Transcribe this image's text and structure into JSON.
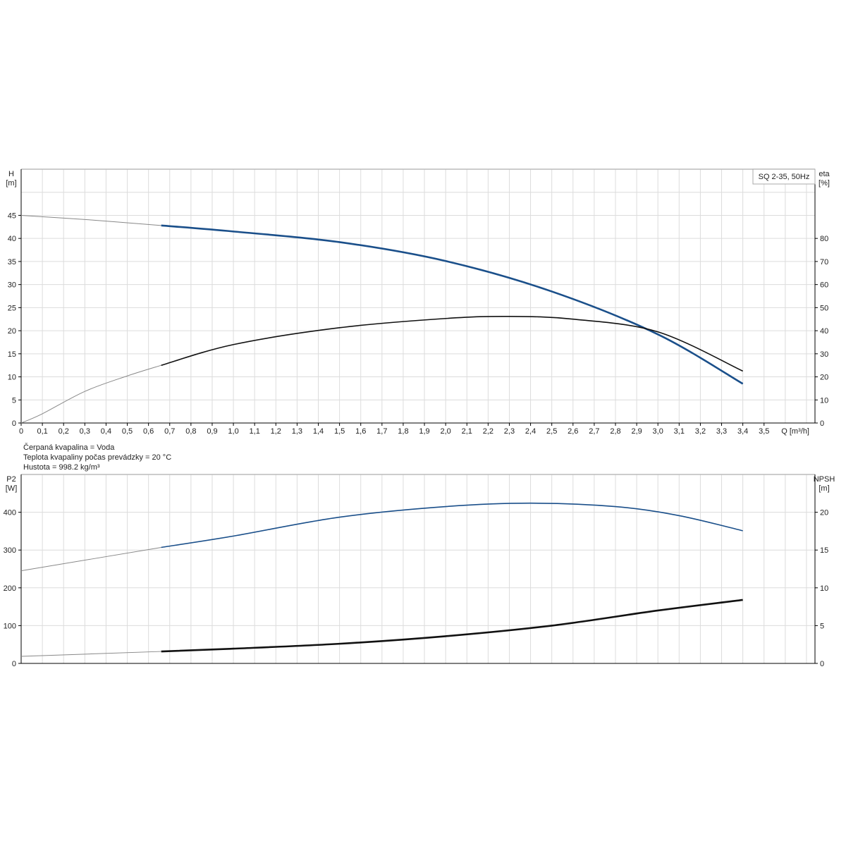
{
  "chart_data": [
    {
      "type": "line",
      "legend": "SQ 2-35, 50Hz",
      "legend_placement": "top-right",
      "grid": true,
      "xlabel": "Q [m³/h]",
      "xlim": [
        0,
        3.74
      ],
      "xticks": [
        "0",
        "0,1",
        "0,2",
        "0,3",
        "0,4",
        "0,5",
        "0,6",
        "0,7",
        "0,8",
        "0,9",
        "1,0",
        "1,1",
        "1,2",
        "1,3",
        "1,4",
        "1,5",
        "1,6",
        "1,7",
        "1,8",
        "1,9",
        "2,0",
        "2,1",
        "2,2",
        "2,3",
        "2,4",
        "2,5",
        "2,6",
        "2,7",
        "2,8",
        "2,9",
        "3,0",
        "3,1",
        "3,2",
        "3,3",
        "3,4",
        "3,5"
      ],
      "ylabel_left": [
        "H",
        "[m]"
      ],
      "ylim_left": [
        0,
        55
      ],
      "yticks_left": [
        "0",
        "5",
        "10",
        "15",
        "20",
        "25",
        "30",
        "35",
        "40",
        "45"
      ],
      "ylabel_right": [
        "eta",
        "[%]"
      ],
      "ylim_right": [
        0,
        110
      ],
      "yticks_right": [
        "0",
        "10",
        "20",
        "30",
        "40",
        "50",
        "60",
        "70",
        "80"
      ],
      "series": [
        {
          "key": "H",
          "axis": "left",
          "color": "#1a4f8a",
          "operating_range_start": 0.66,
          "x": [
            0,
            0.33,
            0.66,
            1.0,
            1.5,
            2.0,
            2.5,
            3.0,
            3.4
          ],
          "y": [
            45,
            44,
            42.8,
            41.5,
            39.2,
            35.1,
            28.5,
            19.2,
            8.5
          ]
        },
        {
          "key": "eta",
          "axis": "right",
          "color": "#111111",
          "operating_range_start": 0.66,
          "x": [
            0,
            0.1,
            0.3,
            0.5,
            0.66,
            1.0,
            1.5,
            2.0,
            2.3,
            2.6,
            3.0,
            3.4
          ],
          "y": [
            0,
            4,
            13.7,
            20.4,
            25,
            34,
            41.3,
            45.3,
            46.2,
            45,
            39.5,
            22.5
          ]
        }
      ]
    },
    {
      "type": "line",
      "grid": true,
      "xlim": [
        0,
        3.74
      ],
      "ylabel_left": [
        "P2",
        "[W]"
      ],
      "ylim_left": [
        0,
        500
      ],
      "yticks_left": [
        "0",
        "100",
        "200",
        "300",
        "400"
      ],
      "ylabel_right": [
        "NPSH",
        "[m]"
      ],
      "ylim_right": [
        0,
        25
      ],
      "yticks_right": [
        "0",
        "5",
        "10",
        "15",
        "20"
      ],
      "series": [
        {
          "key": "P2",
          "axis": "left",
          "color": "#1a4f8a",
          "operating_range_start": 0.66,
          "x": [
            0,
            0.66,
            1.0,
            1.5,
            2.0,
            2.4,
            2.8,
            3.1,
            3.4
          ],
          "y": [
            245,
            307,
            337,
            387,
            415,
            424,
            415,
            391,
            351
          ]
        },
        {
          "key": "NPSH",
          "axis": "right",
          "color": "#111111",
          "operating_range_start": 0.66,
          "x": [
            0,
            0.66,
            1.0,
            1.5,
            2.0,
            2.5,
            3.0,
            3.4
          ],
          "y": [
            0.93,
            1.58,
            1.95,
            2.6,
            3.6,
            5.0,
            7.0,
            8.4
          ]
        }
      ]
    }
  ],
  "fluid_info": [
    "Čerpaná kvapalina = Voda",
    "Teplota kvapaliny počas prevádzky = 20 °C",
    "Hustota = 998.2 kg/m³"
  ]
}
